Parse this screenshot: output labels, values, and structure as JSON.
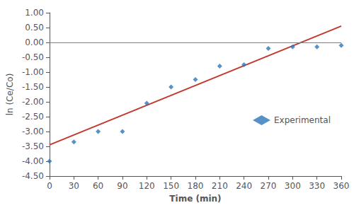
{
  "chart_data": {
    "type": "scatter",
    "xlabel": "Time (min)",
    "ylabel": "ln (Ce/Co)",
    "series": [
      {
        "type": "line",
        "color": "#c0392b",
        "x": [
          0,
          360
        ],
        "values": [
          -3.45,
          0.55
        ]
      },
      {
        "name": "Experimental",
        "type": "scatter",
        "color": "#2e75b6",
        "marker": "diamond",
        "x": [
          0,
          30,
          60,
          90,
          120,
          150,
          180,
          210,
          240,
          270,
          300,
          330,
          360
        ],
        "values": [
          -4.0,
          -3.35,
          -3.0,
          -3.0,
          -2.05,
          -1.5,
          -1.25,
          -0.8,
          -0.75,
          -0.2,
          -0.15,
          -0.15,
          -0.1
        ]
      }
    ],
    "reference_line": {
      "y": 0,
      "color": "#808080"
    },
    "xlim": [
      0,
      360
    ],
    "ylim": [
      -4.5,
      1.0
    ],
    "xticks": [
      0,
      30,
      60,
      90,
      120,
      150,
      180,
      210,
      240,
      270,
      300,
      330,
      360
    ],
    "yticks": [
      {
        "value": -4.5,
        "label": "-4.50"
      },
      {
        "value": -4.0,
        "label": "-4.00"
      },
      {
        "value": -3.5,
        "label": "-3.50"
      },
      {
        "value": -3.0,
        "label": "-3.00"
      },
      {
        "value": -2.5,
        "label": "-2.50"
      },
      {
        "value": -2.0,
        "label": "-2.00"
      },
      {
        "value": -1.5,
        "label": "-1.50"
      },
      {
        "value": -1.0,
        "label": "-1.00"
      },
      {
        "value": -0.5,
        "label": "-0.50"
      },
      {
        "value": 0.0,
        "label": "0.00"
      },
      {
        "value": 0.5,
        "label": "0.50"
      },
      {
        "value": 1.0,
        "label": "1.00"
      }
    ],
    "grid": false,
    "legend": "right"
  }
}
